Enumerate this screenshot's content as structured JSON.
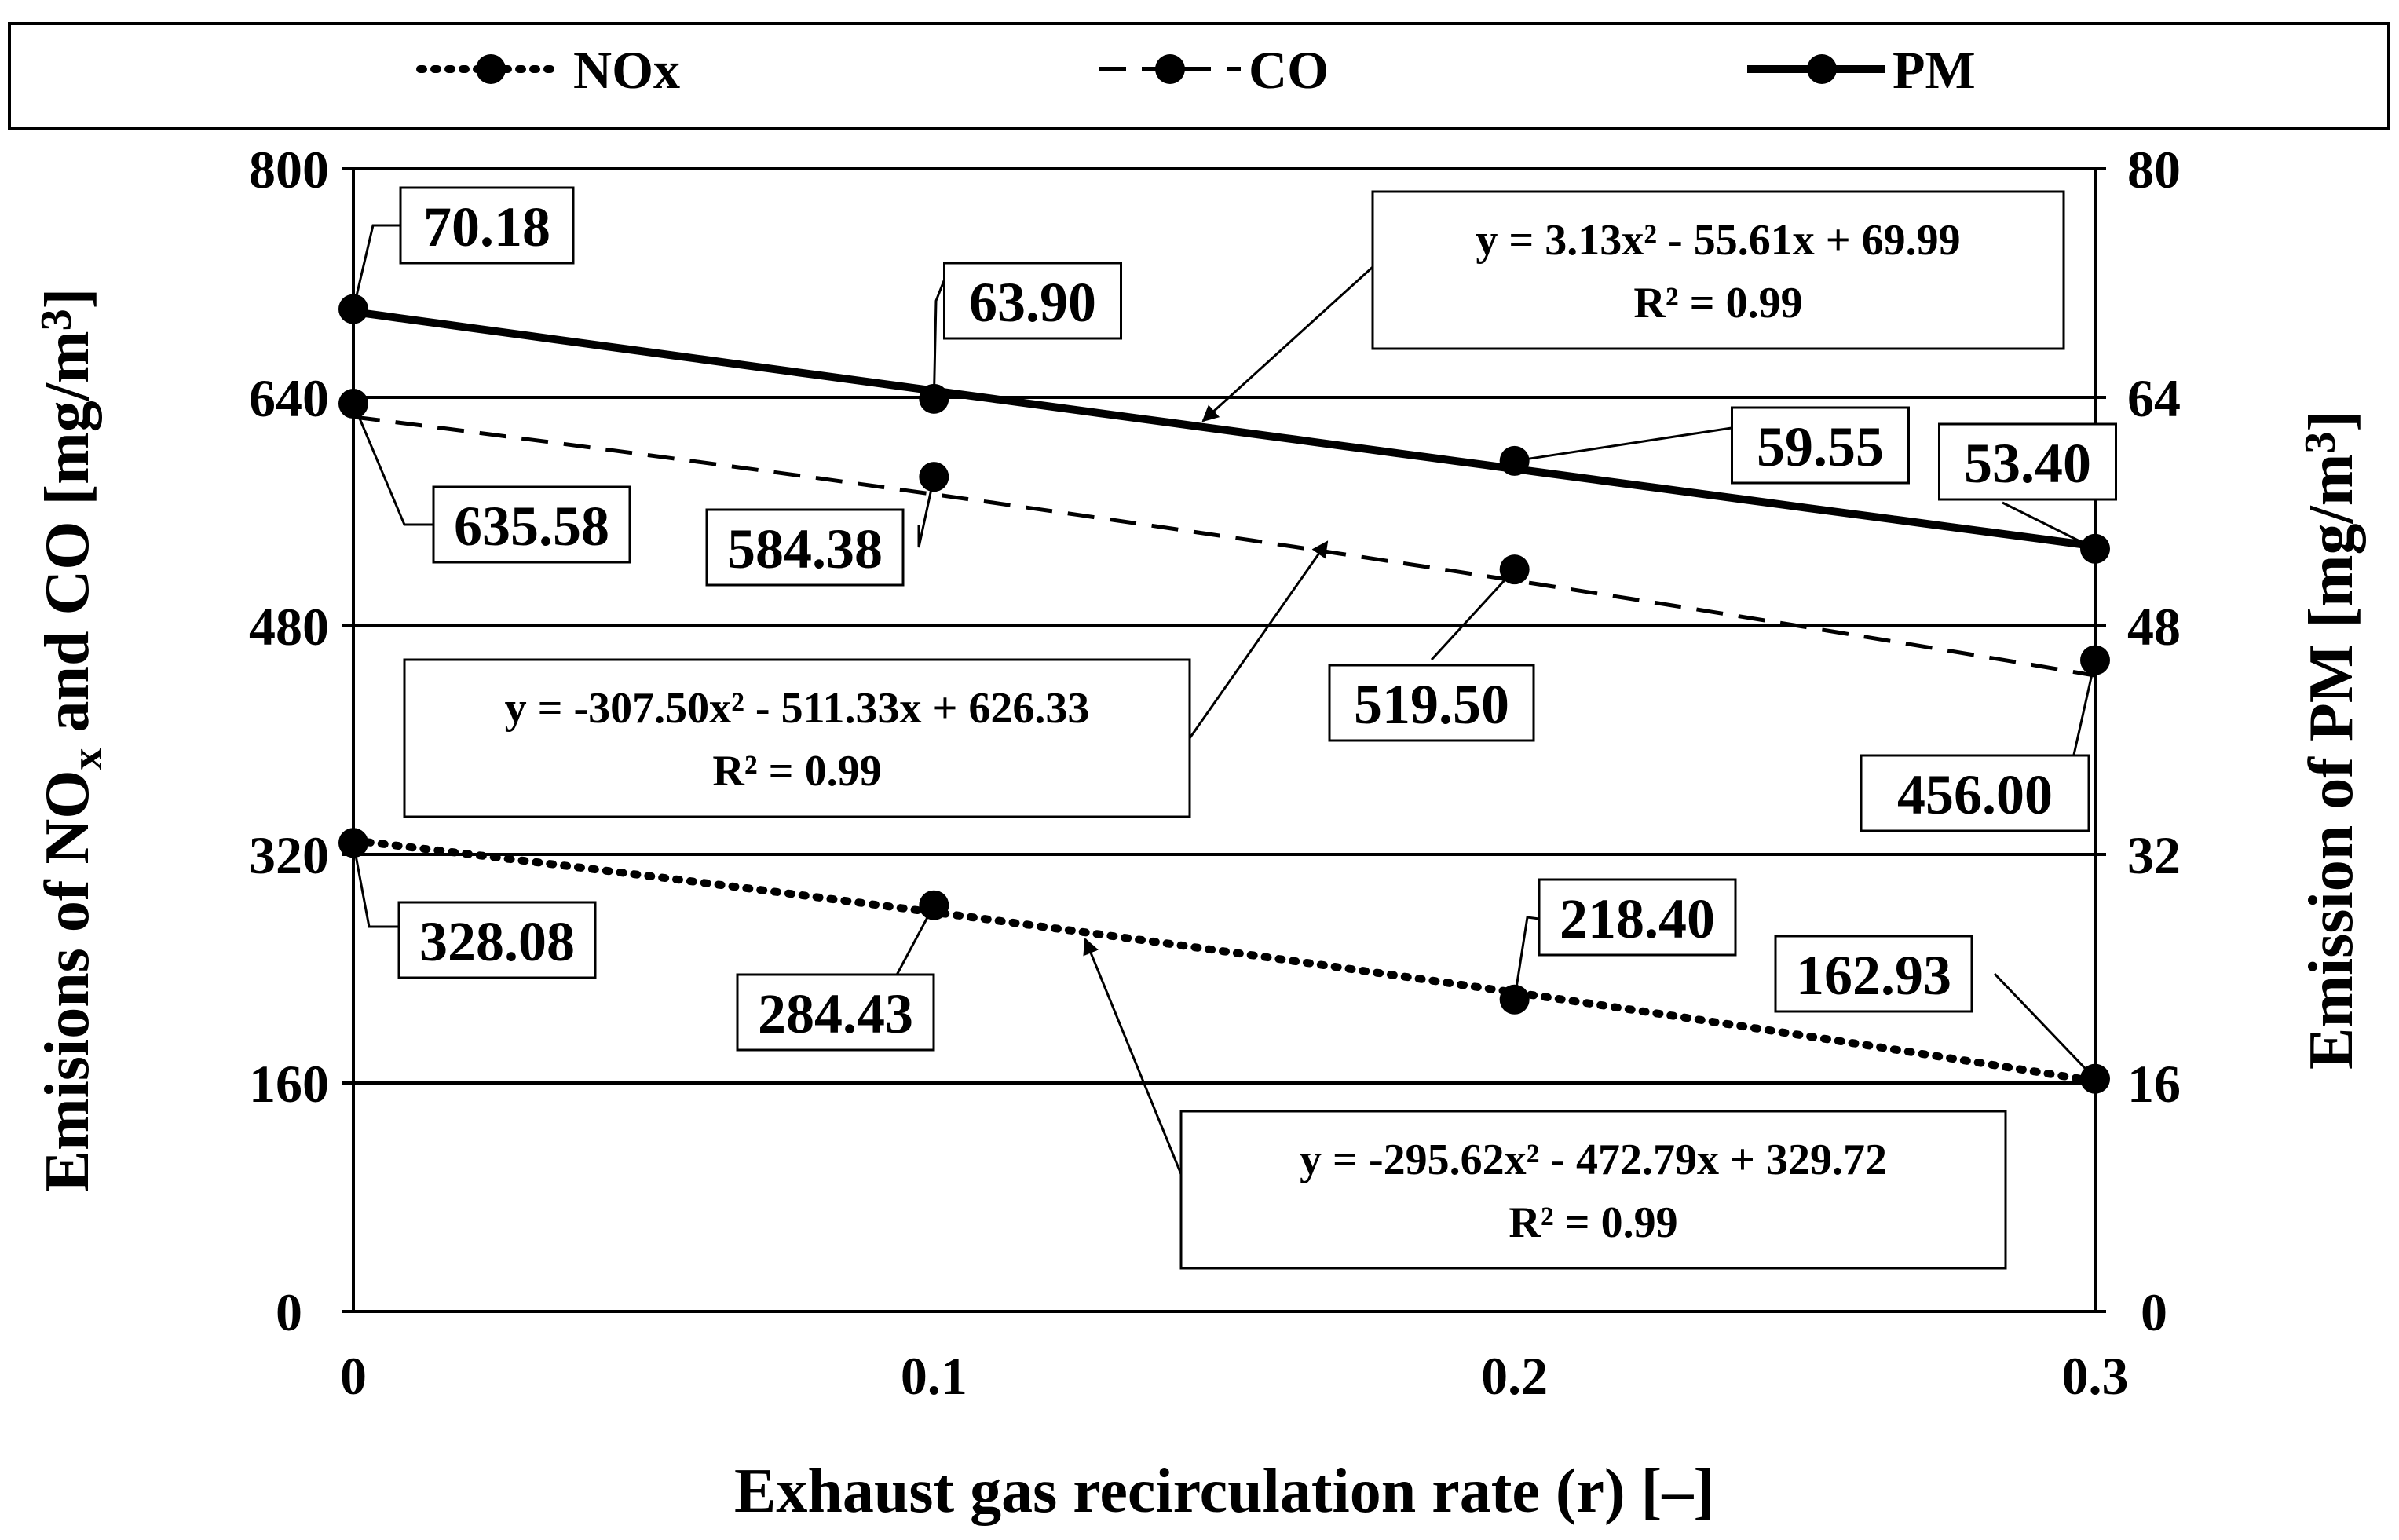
{
  "chart_data": {
    "type": "line",
    "title": "",
    "xlabel": "Exhaust gas recirculation rate (r) [–]",
    "ylabel_left": {
      "main": "Emisions of NO",
      "sub": "x",
      "rest": " and CO [mg/m",
      "sup": "3",
      "end": "]"
    },
    "ylabel_right": {
      "main": "Emission of PM [mg/m",
      "sup": "3",
      "end": "]"
    },
    "x": [
      0,
      0.1,
      0.2,
      0.3
    ],
    "x_tick_labels": [
      "0",
      "0.1",
      "0.2",
      "0.3"
    ],
    "xlim": [
      0,
      0.3
    ],
    "ylim_left": [
      0,
      800
    ],
    "ylim_right": [
      0,
      80
    ],
    "y_ticks_left": [
      0,
      160,
      320,
      480,
      640,
      800
    ],
    "y_ticks_right": [
      0,
      16,
      32,
      48,
      64,
      80
    ],
    "grid": "horizontal",
    "legend_position": "top",
    "series": [
      {
        "name": "NOx",
        "axis": "left",
        "style": "dotted",
        "values": [
          328.08,
          284.43,
          218.4,
          162.93
        ],
        "labels": [
          "328.08",
          "284.43",
          "218.40",
          "162.93"
        ],
        "fit": {
          "a": -295.62,
          "b": -472.79,
          "c": 329.72
        },
        "equation": "y = -295.62x² - 472.79x + 329.72",
        "r2": "R² = 0.99"
      },
      {
        "name": "CO",
        "axis": "left",
        "style": "dashed",
        "values": [
          635.58,
          584.38,
          519.5,
          456.0
        ],
        "labels": [
          "635.58",
          "584.38",
          "519.50",
          "456.00"
        ],
        "fit": {
          "a": -307.5,
          "b": -511.33,
          "c": 626.33
        },
        "equation": "y = -307.50x² - 511.33x + 626.33",
        "r2": "R² = 0.99"
      },
      {
        "name": "PM",
        "axis": "right",
        "style": "solid",
        "values": [
          70.18,
          63.9,
          59.55,
          53.4
        ],
        "labels": [
          "70.18",
          "63.90",
          "59.55",
          "53.40"
        ],
        "fit": {
          "a": 3.13,
          "b": -55.61,
          "c": 69.99
        },
        "equation": "y = 3.13x² - 55.61x + 69.99",
        "r2": "R² = 0.99"
      }
    ]
  }
}
